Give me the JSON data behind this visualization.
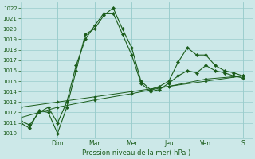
{
  "bg_color": "#cce8e8",
  "grid_color": "#99cccc",
  "line_color": "#1a5c1a",
  "ylabel": "Pression niveau de la mer( hPa )",
  "ylim": [
    1009.5,
    1022.5
  ],
  "yticks": [
    1010,
    1011,
    1012,
    1013,
    1014,
    1015,
    1016,
    1017,
    1018,
    1019,
    1020,
    1021,
    1022
  ],
  "day_labels": [
    "Dim",
    "Mar",
    "Mer",
    "Jeu",
    "Ven",
    "S"
  ],
  "day_positions": [
    24,
    48,
    72,
    96,
    120,
    144
  ],
  "xlim": [
    0,
    150
  ],
  "series": [
    {
      "x": [
        0,
        6,
        12,
        18,
        24,
        30,
        36,
        42,
        48,
        54,
        60,
        66,
        72,
        78,
        84,
        90,
        96,
        102,
        108,
        114,
        120,
        126,
        132,
        138,
        144
      ],
      "y": [
        1011.0,
        1010.5,
        1012.2,
        1012.0,
        1010.0,
        1012.5,
        1016.0,
        1019.5,
        1020.0,
        1021.3,
        1022.0,
        1020.0,
        1018.2,
        1015.0,
        1014.2,
        1014.5,
        1015.0,
        1016.8,
        1018.2,
        1017.5,
        1017.5,
        1016.5,
        1016.0,
        1015.8,
        1015.5
      ]
    },
    {
      "x": [
        0,
        6,
        12,
        18,
        24,
        30,
        36,
        42,
        48,
        54,
        60,
        66,
        72,
        78,
        84,
        90,
        96,
        102,
        108,
        114,
        120,
        126,
        132,
        138,
        144
      ],
      "y": [
        1011.2,
        1010.8,
        1012.0,
        1012.5,
        1011.0,
        1013.0,
        1016.5,
        1019.0,
        1020.3,
        1021.5,
        1021.5,
        1019.5,
        1017.5,
        1014.8,
        1014.0,
        1014.2,
        1014.8,
        1015.5,
        1016.0,
        1015.8,
        1016.5,
        1016.0,
        1015.8,
        1015.5,
        1015.3
      ]
    },
    {
      "x": [
        0,
        24,
        48,
        72,
        96,
        120,
        144
      ],
      "y": [
        1012.5,
        1013.0,
        1013.5,
        1014.0,
        1014.5,
        1015.0,
        1015.5
      ]
    },
    {
      "x": [
        0,
        24,
        48,
        72,
        96,
        120,
        144
      ],
      "y": [
        1011.5,
        1012.5,
        1013.2,
        1013.8,
        1014.5,
        1015.2,
        1015.5
      ]
    }
  ]
}
